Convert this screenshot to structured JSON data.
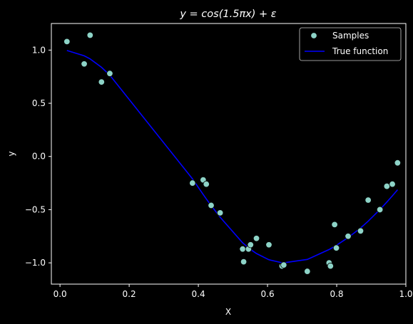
{
  "chart_data": {
    "type": "scatter",
    "title_prefix": "y = cos(1.5",
    "title_pi": "π",
    "title_suffix": "x) + ε",
    "xlabel": "X",
    "ylabel": "y",
    "xlim": [
      -0.025,
      1.0
    ],
    "ylim": [
      -1.2,
      1.25
    ],
    "xticks": [
      0.0,
      0.2,
      0.4,
      0.6,
      0.8,
      1.0
    ],
    "xtick_labels": [
      "0.0",
      "0.2",
      "0.4",
      "0.6",
      "0.8",
      "1.0"
    ],
    "yticks": [
      1.0,
      0.5,
      0.0,
      -0.5,
      -1.0
    ],
    "ytick_labels": [
      "1.0",
      "0.5",
      "0.0",
      "−0.5",
      "−1.0"
    ],
    "legend": {
      "position": "top-right",
      "samples_label": "Samples",
      "line_label": "True function"
    },
    "colors": {
      "background": "#000000",
      "samples": "#8dd3c7",
      "line": "#0000ff",
      "axes": "#ffffff"
    },
    "samples": [
      {
        "x": 0.02,
        "y": 1.08
      },
      {
        "x": 0.07,
        "y": 0.87
      },
      {
        "x": 0.087,
        "y": 1.14
      },
      {
        "x": 0.12,
        "y": 0.7
      },
      {
        "x": 0.144,
        "y": 0.78
      },
      {
        "x": 0.383,
        "y": -0.25
      },
      {
        "x": 0.414,
        "y": -0.22
      },
      {
        "x": 0.423,
        "y": -0.26
      },
      {
        "x": 0.437,
        "y": -0.46
      },
      {
        "x": 0.463,
        "y": -0.53
      },
      {
        "x": 0.528,
        "y": -0.87
      },
      {
        "x": 0.531,
        "y": -0.99
      },
      {
        "x": 0.545,
        "y": -0.87
      },
      {
        "x": 0.551,
        "y": -0.83
      },
      {
        "x": 0.568,
        "y": -0.77
      },
      {
        "x": 0.604,
        "y": -0.83
      },
      {
        "x": 0.642,
        "y": -1.03
      },
      {
        "x": 0.647,
        "y": -1.02
      },
      {
        "x": 0.715,
        "y": -1.08
      },
      {
        "x": 0.778,
        "y": -1.0
      },
      {
        "x": 0.782,
        "y": -1.03
      },
      {
        "x": 0.794,
        "y": -0.64
      },
      {
        "x": 0.799,
        "y": -0.86
      },
      {
        "x": 0.833,
        "y": -0.75
      },
      {
        "x": 0.869,
        "y": -0.7
      },
      {
        "x": 0.891,
        "y": -0.41
      },
      {
        "x": 0.925,
        "y": -0.5
      },
      {
        "x": 0.945,
        "y": -0.28
      },
      {
        "x": 0.961,
        "y": -0.26
      },
      {
        "x": 0.976,
        "y": -0.06
      }
    ],
    "true_function": {
      "x": [
        0.02,
        0.07,
        0.087,
        0.12,
        0.144,
        0.383,
        0.414,
        0.423,
        0.437,
        0.463,
        0.528,
        0.531,
        0.545,
        0.551,
        0.568,
        0.604,
        0.642,
        0.647,
        0.715,
        0.778,
        0.782,
        0.794,
        0.799,
        0.833,
        0.869,
        0.891,
        0.925,
        0.945,
        0.961,
        0.976
      ],
      "y": [
        0.996,
        0.946,
        0.917,
        0.838,
        0.765,
        -0.21,
        -0.358,
        -0.399,
        -0.461,
        -0.571,
        -0.811,
        -0.82,
        -0.859,
        -0.874,
        -0.912,
        -0.971,
        -0.999,
        -1.0,
        -0.968,
        -0.875,
        -0.867,
        -0.846,
        -0.836,
        -0.763,
        -0.672,
        -0.609,
        -0.499,
        -0.429,
        -0.37,
        -0.313
      ]
    }
  }
}
